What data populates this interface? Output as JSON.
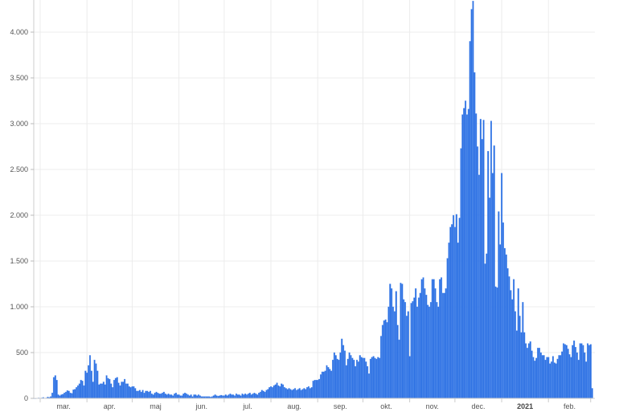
{
  "chart_data": {
    "type": "bar",
    "title": "",
    "xlabel": "",
    "ylabel": "",
    "ylim": [
      0,
      4400
    ],
    "grid": true,
    "colors": {
      "bar": "#2b6fe2",
      "bar_edge": "#5c95ef",
      "grid": "#ececec",
      "axis": "#cccccc"
    },
    "y_ticks": [
      {
        "value": 0,
        "label": "0"
      },
      {
        "value": 500,
        "label": "500"
      },
      {
        "value": 1000,
        "label": "1.000"
      },
      {
        "value": 1500,
        "label": "1.500"
      },
      {
        "value": 2000,
        "label": "2.000"
      },
      {
        "value": 2500,
        "label": "2.500"
      },
      {
        "value": 3000,
        "label": "3.000"
      },
      {
        "value": 3500,
        "label": "3.500"
      },
      {
        "value": 4000,
        "label": "4.000"
      }
    ],
    "x_ticks": [
      {
        "month": "2020-03",
        "label": "mar."
      },
      {
        "month": "2020-04",
        "label": "apr."
      },
      {
        "month": "2020-05",
        "label": "maj"
      },
      {
        "month": "2020-06",
        "label": "jun."
      },
      {
        "month": "2020-07",
        "label": "jul."
      },
      {
        "month": "2020-08",
        "label": "aug."
      },
      {
        "month": "2020-09",
        "label": "sep."
      },
      {
        "month": "2020-10",
        "label": "okt."
      },
      {
        "month": "2020-11",
        "label": "nov."
      },
      {
        "month": "2020-12",
        "label": "dec."
      },
      {
        "month": "2021-01",
        "label": "2021",
        "bold": true
      },
      {
        "month": "2021-02",
        "label": "feb."
      }
    ],
    "series": [
      {
        "daily": [
          {
            "month": "2020-02",
            "start_day": 26,
            "values": [
              1,
              1,
              3,
              5
            ]
          },
          {
            "month": "2020-03",
            "values": [
              2,
              5,
              10,
              3,
              5,
              15,
              10,
              20,
              60,
              230,
              250,
              200,
              40,
              30,
              40,
              45,
              60,
              70,
              85,
              80,
              60,
              55,
              95,
              100,
              120,
              140,
              160,
              200,
              190,
              140,
              300
            ]
          },
          {
            "month": "2020-04",
            "values": [
              280,
              360,
              470,
              300,
              180,
              420,
              380,
              300,
              150,
              160,
              160,
              180,
              150,
              250,
              220,
              210,
              160,
              120,
              200,
              220,
              230,
              170,
              140,
              180,
              180,
              210,
              160,
              160,
              130,
              120
            ]
          },
          {
            "month": "2020-05",
            "values": [
              130,
              130,
              110,
              80,
              80,
              90,
              70,
              90,
              60,
              80,
              80,
              70,
              80,
              50,
              40,
              60,
              70,
              60,
              50,
              50,
              60,
              70,
              50,
              40,
              50,
              40,
              40,
              30,
              50,
              60,
              40
            ]
          },
          {
            "month": "2020-06",
            "values": [
              40,
              30,
              30,
              50,
              60,
              50,
              40,
              30,
              40,
              20,
              40,
              40,
              30,
              40,
              30,
              20,
              20,
              20,
              20,
              20,
              20,
              15,
              20,
              30,
              40,
              30,
              25,
              30,
              35,
              30
            ]
          },
          {
            "month": "2020-07",
            "values": [
              30,
              40,
              30,
              40,
              50,
              40,
              40,
              30,
              50,
              40,
              40,
              30,
              50,
              40,
              50,
              40,
              50,
              60,
              40,
              50,
              60,
              50,
              40,
              60,
              70,
              90,
              80,
              70,
              90,
              100,
              120
            ]
          },
          {
            "month": "2020-08",
            "values": [
              130,
              120,
              140,
              150,
              170,
              140,
              130,
              160,
              150,
              120,
              110,
              100,
              110,
              100,
              90,
              100,
              110,
              90,
              100,
              110,
              90,
              100,
              110,
              100,
              120,
              130,
              110,
              120,
              190,
              200,
              200
            ]
          },
          {
            "month": "2020-09",
            "values": [
              200,
              210,
              260,
              290,
              290,
              300,
              360,
              340,
              320,
              300,
              420,
              500,
              470,
              430,
              420,
              500,
              650,
              580,
              520,
              360,
              430,
              500,
              470,
              440,
              420,
              350,
              420,
              400,
              470,
              450
            ]
          },
          {
            "month": "2020-10",
            "values": [
              440,
              440,
              400,
              350,
              270,
              430,
              450,
              460,
              440,
              430,
              450,
              440,
              680,
              800,
              850,
              860,
              830,
              1000,
              1250,
              1200,
              1000,
              950,
              1170,
              800,
              640,
              1260,
              1250,
              1080,
              1050,
              900,
              950
            ]
          },
          {
            "month": "2020-11",
            "values": [
              460,
              1040,
              1060,
              1100,
              1200,
              1000,
              1100,
              1150,
              1300,
              1320,
              1200,
              1130,
              1020,
              1000,
              1050,
              1300,
              1300,
              1200,
              1050,
              1000,
              1300,
              1320,
              1150,
              1150,
              1200,
              1530,
              1700,
              1870,
              1900,
              2000
            ]
          },
          {
            "month": "2020-12",
            "values": [
              1870,
              2010,
              1700,
              1970,
              2730,
              3100,
              3170,
              3250,
              3100,
              3160,
              3900,
              4250,
              4340,
              3560,
              3110,
              2750,
              2440,
              3050,
              2830,
              3040,
              1470,
              1580,
              2700,
              2190,
              3030,
              2460,
              2760,
              1220,
              1210,
              2040,
              1680
            ]
          },
          {
            "month": "2021-01",
            "values": [
              2460,
              1920,
              1640,
              1570,
              1420,
              1330,
              1180,
              1080,
              1300,
              950,
              740,
              1200,
              900,
              720,
              1050,
              720,
              600,
              550,
              600,
              620,
              520,
              450,
              410,
              440,
              550,
              550,
              500,
              470,
              470,
              420,
              450
            ]
          },
          {
            "month": "2021-02",
            "values": [
              450,
              380,
              400,
              460,
              390,
              380,
              430,
              470,
              470,
              510,
              600,
              590,
              580,
              540,
              480,
              450,
              580,
              630,
              560,
              500,
              420,
              600,
              600,
              580,
              500,
              400,
              600,
              580
            ]
          },
          {
            "month": "2021-03",
            "values": [
              590,
              110
            ]
          }
        ]
      }
    ]
  }
}
